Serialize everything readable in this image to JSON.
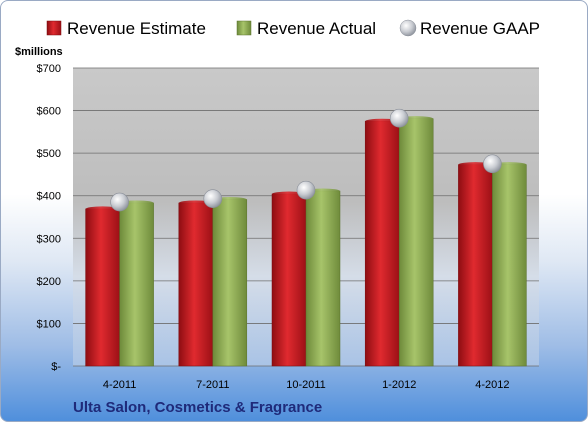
{
  "chart_data": {
    "type": "bar",
    "title": "",
    "unit_label": "$millions",
    "footer_label": "Ulta Salon, Cosmetics & Fragrance",
    "categories": [
      "4-2011",
      "7-2011",
      "10-2011",
      "1-2012",
      "4-2012"
    ],
    "series": [
      {
        "name": "Revenue Estimate",
        "type": "bar",
        "color": "#c0121a",
        "values": [
          369,
          383,
          404,
          575,
          473
        ]
      },
      {
        "name": "Revenue Actual",
        "type": "bar",
        "color": "#8faa52",
        "values": [
          383,
          391,
          411,
          581,
          473
        ]
      },
      {
        "name": "Revenue GAAP",
        "type": "marker",
        "color": "#c8ccd2",
        "values": [
          385,
          393,
          413,
          582,
          475
        ]
      }
    ],
    "ylim": [
      0,
      700
    ],
    "yticks": [
      0,
      100,
      200,
      300,
      400,
      500,
      600,
      700
    ],
    "ytick_labels": [
      "$-",
      "$100",
      "$200",
      "$300",
      "$400",
      "$500",
      "$600",
      "$700"
    ],
    "legend_position": "top",
    "grid": true
  }
}
